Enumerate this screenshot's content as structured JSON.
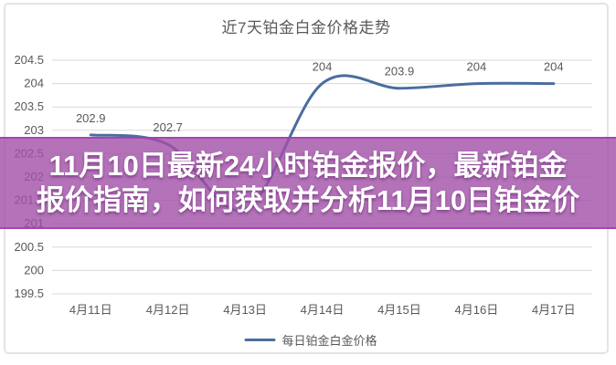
{
  "chart_data": {
    "type": "line",
    "title": "近7天铂金白金价格走势",
    "categories": [
      "4月11日",
      "4月12日",
      "4月13日",
      "4月14日",
      "4月15日",
      "4月16日",
      "4月17日"
    ],
    "series": [
      {
        "name": "每日铂金白金价格",
        "values": [
          202.9,
          202.7,
          201.3,
          204,
          203.9,
          204,
          204
        ]
      }
    ],
    "point_labels": [
      "202.9",
      "202.7",
      null,
      "204",
      "203.9",
      "204",
      "204"
    ],
    "ylim": [
      199.5,
      204.5
    ],
    "ytick_step": 0.5,
    "grid": true,
    "smooth": true,
    "legend_position": "bottom",
    "colors": {
      "line": "#4a6d9c",
      "grid": "#d9d9d9",
      "text": "#595959"
    }
  },
  "legend": {
    "label": "每日铂金白金价格"
  },
  "overlay": {
    "line1": "11月10日最新24小时铂金报价，最新铂金",
    "line2": "报价指南，如何获取并分析11月10日铂金价",
    "bg_rgba": "rgba(161,80,167,0.80)",
    "edge_rgba": "rgba(168,60,175,0.88)",
    "text_color": "#ffffff"
  }
}
